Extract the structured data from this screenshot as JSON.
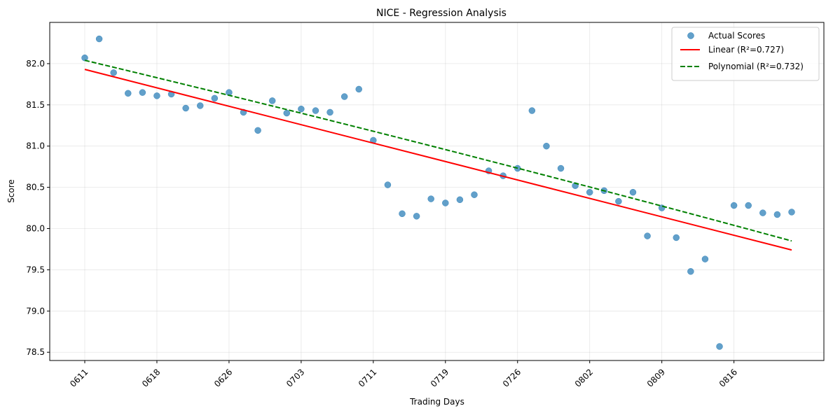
{
  "chart_data": {
    "type": "scatter",
    "title": "NICE - Regression Analysis",
    "xlabel": "Trading Days",
    "ylabel": "Score",
    "ylim": [
      78.4,
      82.5
    ],
    "yticks": [
      78.5,
      79.0,
      79.5,
      80.0,
      80.5,
      81.0,
      81.5,
      82.0
    ],
    "xticks": [
      {
        "index": 0,
        "label": "0611"
      },
      {
        "index": 5,
        "label": "0618"
      },
      {
        "index": 10,
        "label": "0626"
      },
      {
        "index": 15,
        "label": "0703"
      },
      {
        "index": 20,
        "label": "0711"
      },
      {
        "index": 25,
        "label": "0719"
      },
      {
        "index": 30,
        "label": "0726"
      },
      {
        "index": 35,
        "label": "0802"
      },
      {
        "index": 40,
        "label": "0809"
      },
      {
        "index": 45,
        "label": "0816"
      }
    ],
    "grid": true,
    "legend_position": "top-right",
    "series": [
      {
        "name": "Actual Scores",
        "kind": "scatter",
        "color": "#1f77b4",
        "values": [
          82.07,
          82.3,
          81.89,
          81.64,
          81.65,
          81.61,
          81.63,
          81.46,
          81.49,
          81.58,
          81.65,
          81.41,
          81.19,
          81.55,
          81.4,
          81.45,
          81.43,
          81.41,
          81.6,
          81.69,
          81.07,
          80.53,
          80.18,
          80.15,
          80.36,
          80.31,
          80.35,
          80.41,
          80.7,
          80.64,
          80.73,
          81.43,
          81.0,
          80.73,
          80.52,
          80.44,
          80.46,
          80.33,
          80.44,
          79.91,
          80.25,
          79.89,
          79.48,
          79.63,
          78.57,
          80.28,
          80.28,
          80.19,
          80.17,
          80.2
        ]
      },
      {
        "name": "Linear (R²=0.727)",
        "kind": "line",
        "color": "#ff0000",
        "dash": "solid",
        "start": 81.93,
        "end": 79.74
      },
      {
        "name": "Polynomial (R²=0.732)",
        "kind": "line",
        "color": "#008000",
        "dash": "dashed",
        "start": 82.04,
        "mid": 80.98,
        "end": 79.85
      }
    ]
  }
}
